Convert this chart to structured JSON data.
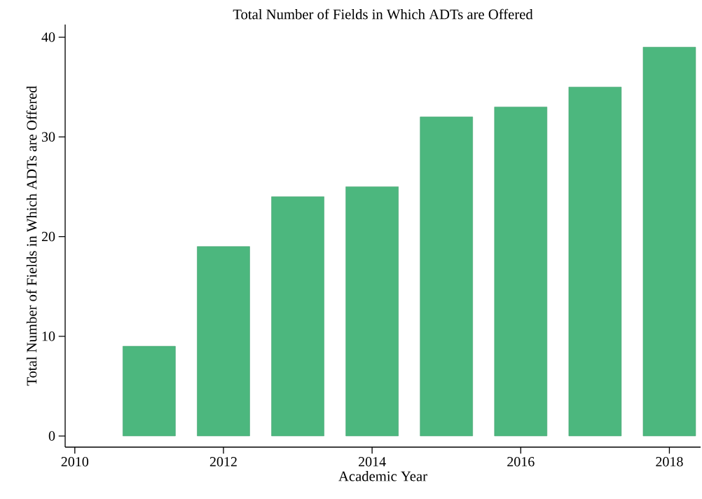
{
  "chart_data": {
    "type": "bar",
    "title": "Total Number of Fields in Which ADTs are Offered",
    "xlabel": "Academic Year",
    "ylabel": "Total Number of Fields in Which ADTs are Offered",
    "x": [
      2011,
      2012,
      2013,
      2014,
      2015,
      2016,
      2017,
      2018
    ],
    "values": [
      9,
      19,
      24,
      25,
      32,
      33,
      35,
      39
    ],
    "color": "#4cb77e",
    "xlim": [
      2009.87,
      2018.42
    ],
    "xticks": [
      2010,
      2012,
      2014,
      2016,
      2018
    ],
    "ylim": [
      -1.12,
      41.27
    ],
    "yticks": [
      0,
      10,
      20,
      30,
      40
    ],
    "grid": false
  }
}
